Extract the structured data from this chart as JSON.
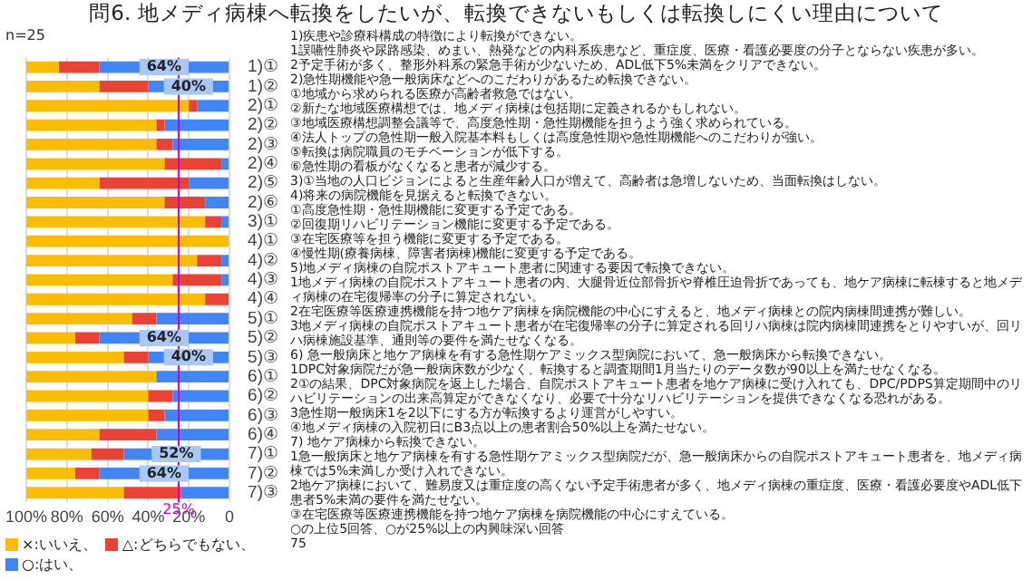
{
  "chart_data": {
    "type": "bar",
    "orientation": "horizontal",
    "stacked": true,
    "title": "問6. 地メディ病棟へ転換をしたいが、転換できないもしくは転換しにくい理由について",
    "subtitle": "n=25",
    "categories": [
      "1)①",
      "1)②",
      "2)①",
      "2)②",
      "2)③",
      "2)④",
      "2)⑤",
      "2)⑥",
      "3)①",
      "4)①",
      "4)②",
      "4)③",
      "4)④",
      "5)①",
      "5)②",
      "5)③",
      "6)①",
      "6)②",
      "6)③",
      "6)④",
      "7)①",
      "7)②",
      "7)③"
    ],
    "series": [
      {
        "name": "○:はい、",
        "color": "#4285f4",
        "values": [
          64,
          40,
          16,
          32,
          28,
          4,
          20,
          12,
          4,
          0,
          4,
          4,
          0,
          36,
          64,
          40,
          36,
          28,
          32,
          36,
          52,
          64,
          24
        ],
        "value_labels": [
          "64%",
          "40%",
          null,
          null,
          null,
          null,
          null,
          null,
          null,
          null,
          null,
          null,
          null,
          null,
          "64%",
          "40%",
          null,
          null,
          null,
          null,
          "52%",
          "64%",
          null
        ]
      },
      {
        "name": "△:どちらでもない、",
        "color": "#ea4335",
        "values": [
          20,
          24,
          4,
          4,
          8,
          28,
          44,
          20,
          8,
          0,
          12,
          24,
          12,
          12,
          12,
          12,
          0,
          12,
          8,
          28,
          16,
          12,
          28
        ]
      },
      {
        "name": "×:いいえ、",
        "color": "#fbbc04",
        "values": [
          16,
          36,
          80,
          64,
          64,
          68,
          36,
          68,
          88,
          100,
          84,
          72,
          88,
          52,
          24,
          48,
          64,
          60,
          60,
          36,
          32,
          24,
          48
        ]
      }
    ],
    "xlim": [
      100,
      0
    ],
    "xticks": [
      {
        "value": 100,
        "label": "100%"
      },
      {
        "value": 80,
        "label": "80%"
      },
      {
        "value": 60,
        "label": "60%"
      },
      {
        "value": 40,
        "label": "40%"
      },
      {
        "value": 20,
        "label": "20%"
      },
      0
    ],
    "grid": "x",
    "legend": "bottom",
    "ref_lines": [
      {
        "axis": "x",
        "value": 25,
        "label": "25%",
        "color": "#cc00cc"
      }
    ],
    "annotations": [
      "1)疾患や診療科構成の特徴により転換ができない。",
      "1誤嚥性肺炎や尿路感染、めまい、熱発などの内科系疾患など、重症度、医療・看護必要度の分子とならない疾患が多い。",
      "2予定手術が多く、整形外科系の緊急手術が少ないため、ADL低下5%未満をクリアできない。",
      "2)急性期機能や急一般病床などへのこだわりがあるため転換できない。",
      "①地域から求められる医療が高齢者救急ではない。",
      "②新たな地域医療構想では、地メディ病棟は包括期に定義されるかもしれない。",
      "③地域医療構想調整会議等で、高度急性期・急性期機能を担うよう強く求められている。",
      "④法人トップの急性期一般入院基本料もしくは高度急性期や急性期機能へのこだわりが強い。",
      "⑤転換は病院職員のモチベーションが低下する。",
      "⑥急性期の看板がなくなると患者が減少する。",
      "3)①当地の人口ビジョンによると生産年齢人口が増えて、高齢者は急増しないため、当面転換はしない。",
      "4)将来の病院機能を見据えると転換できない。",
      "①高度急性期・急性期機能に変更する予定である。",
      "②回復期リハビリテーション機能に変更する予定である。",
      "③在宅医療等を担う機能に変更する予定である。",
      "④慢性期(療養病棟、障害者病棟)機能に変更する予定である。",
      "5)地メディ病棟の自院ポストアキュート患者に関連する要因で転換できない。",
      "1地メディ病棟の自院ポストアキュート患者の内、大腿骨近位部骨折や脊椎圧迫骨折であっても、地ケア病棟に転棟すると地メディ病棟の在宅復帰率の分子に算定されない。",
      "2在宅医療等医療連携機能を持つ地ケア病棟を病院機能の中心にすえると、地メディ病棟との院内病棟間連携が難しい。",
      "3地メディ病棟の自院ポストアキュート患者が在宅復帰率の分子に算定される回リハ病棟は院内病棟間連携をとりやすいが、回リハ病棟施設基準、通則等の要件を満たせなくなる。",
      "6) 急一般病床と地ケア病棟を有する急性期ケアミックス型病院において、急一般病床から転換できない。",
      "1DPC対象病院だが急一般病床数が少なく、転換すると調査期間1月当たりのデータ数が90以上を満たせなくなる。",
      "2①の結果、DPC対象病院を返上した場合、自院ポストアキュート患者を地ケア病棟に受け入れても、DPC/PDPS算定期間中のリハビリテーションの出来高算定ができなくなり、必要で十分なリハビリテーションを提供できなくなる恐れがある。",
      "3急性期一般病床1を2以下にする方が転換するより運営がしやすい。",
      "④地メディ病棟の入院初日にB3点以上の患者割合50%以上を満たせない。",
      "7) 地ケア病棟から転換できない。",
      "1急一般病床と地ケア病棟を有する急性期ケアミックス型病院だが、急一般病床からの自院ポストアキュート患者を、地メディ病棟では5%未満しか受け入れできない。",
      "2地ケア病棟において、難易度又は重症度の高くない予定手術患者が多く、地メディ病棟の重症度、医療・看護必要度やADL低下患者5%未満の要件を満たせない。",
      "③在宅医療等医療連携機能を持つ地ケア病棟を病院機能の中心にすえている。",
      "○の上位5回答、○が25%以上の内興味深い回答",
      "75"
    ]
  }
}
